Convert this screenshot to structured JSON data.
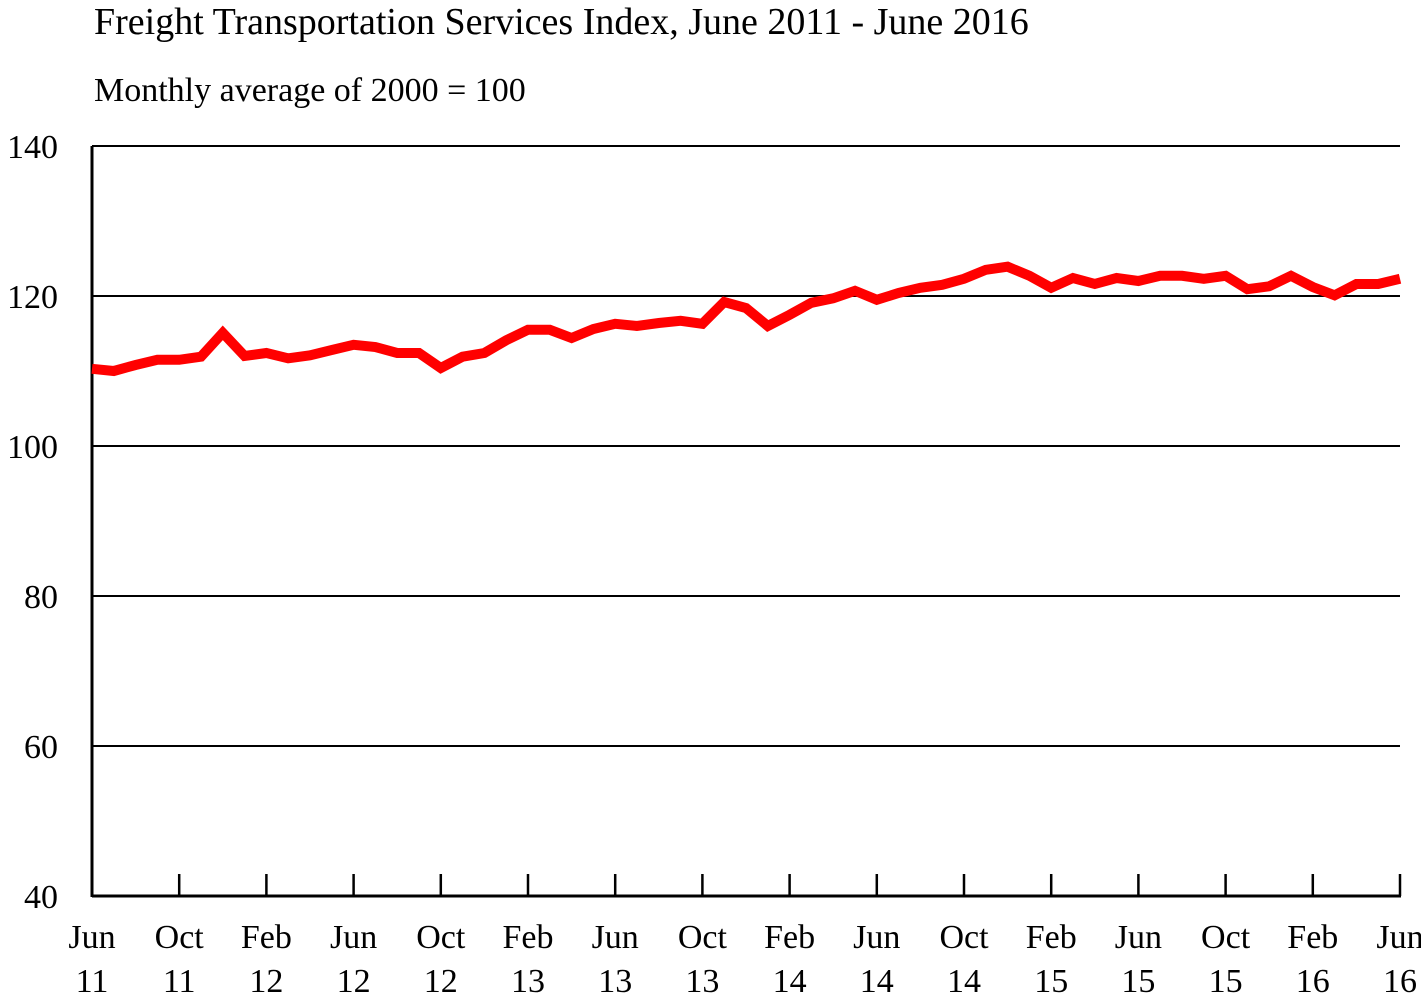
{
  "chart_data": {
    "type": "line",
    "title": "Freight Transportation Services Index, June 2011 - June 2016",
    "subtitle": "Monthly average of 2000 = 100",
    "xlabel": "",
    "ylabel": "",
    "ylim": [
      40,
      140
    ],
    "yticks": [
      40,
      60,
      80,
      100,
      120,
      140
    ],
    "grid": "horizontal",
    "x_start": "Jun 2011",
    "x_end": "Jun 2016",
    "xtick_labels": [
      [
        "Jun",
        "11"
      ],
      [
        "Oct",
        "11"
      ],
      [
        "Feb",
        "12"
      ],
      [
        "Jun",
        "12"
      ],
      [
        "Oct",
        "12"
      ],
      [
        "Feb",
        "13"
      ],
      [
        "Jun",
        "13"
      ],
      [
        "Oct",
        "13"
      ],
      [
        "Feb",
        "14"
      ],
      [
        "Jun",
        "14"
      ],
      [
        "Oct",
        "14"
      ],
      [
        "Feb",
        "15"
      ],
      [
        "Jun",
        "15"
      ],
      [
        "Oct",
        "15"
      ],
      [
        "Feb",
        "16"
      ],
      [
        "Jun",
        "16"
      ]
    ],
    "series": [
      {
        "color": "#ff0000",
        "values": [
          110.3,
          110.0,
          110.8,
          111.5,
          111.5,
          111.9,
          115.1,
          112.0,
          112.4,
          111.7,
          112.1,
          112.8,
          113.5,
          113.2,
          112.4,
          112.4,
          110.4,
          111.9,
          112.4,
          114.1,
          115.5,
          115.5,
          114.4,
          115.6,
          116.3,
          116.0,
          116.4,
          116.7,
          116.3,
          119.2,
          118.4,
          116.0,
          117.5,
          119.1,
          119.7,
          120.7,
          119.5,
          120.4,
          121.1,
          121.5,
          122.3,
          123.5,
          123.9,
          122.7,
          121.1,
          122.4,
          121.6,
          122.4,
          122.0,
          122.7,
          122.7,
          122.3,
          122.7,
          120.9,
          121.3,
          122.7,
          121.2,
          120.1,
          121.6,
          121.6,
          122.3
        ]
      }
    ]
  }
}
